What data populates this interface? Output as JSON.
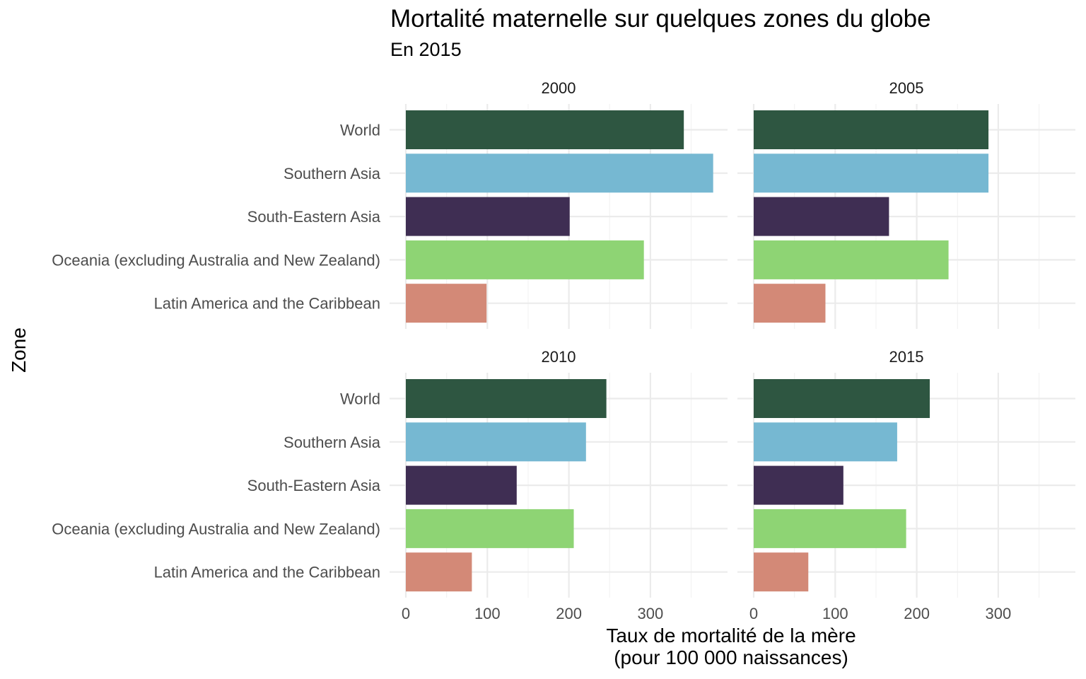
{
  "chart_data": {
    "type": "bar",
    "orientation": "horizontal",
    "facet": "wrap",
    "title": "Mortalité maternelle sur quelques zones du globe",
    "subtitle": "En 2015",
    "xlabel": "Taux de mortalité de la mère\n(pour 100 000 naissances)",
    "ylabel": "Zone",
    "xlim": [
      0,
      395
    ],
    "x_ticks": [
      0,
      100,
      200,
      300
    ],
    "grid": true,
    "legend": "none",
    "categories": [
      "World",
      "Southern Asia",
      "South-Eastern Asia",
      "Oceania (excluding Australia and New Zealand)",
      "Latin America and the Caribbean"
    ],
    "colors": [
      "#2e5641",
      "#76b8d2",
      "#3f2e53",
      "#8ed474",
      "#d38977"
    ],
    "panels": [
      {
        "label": "2000",
        "values": [
          341,
          377,
          201,
          292,
          99
        ]
      },
      {
        "label": "2005",
        "values": [
          288,
          288,
          166,
          239,
          88
        ]
      },
      {
        "label": "2010",
        "values": [
          246,
          221,
          136,
          206,
          81
        ]
      },
      {
        "label": "2015",
        "values": [
          216,
          176,
          110,
          187,
          67
        ]
      }
    ]
  }
}
